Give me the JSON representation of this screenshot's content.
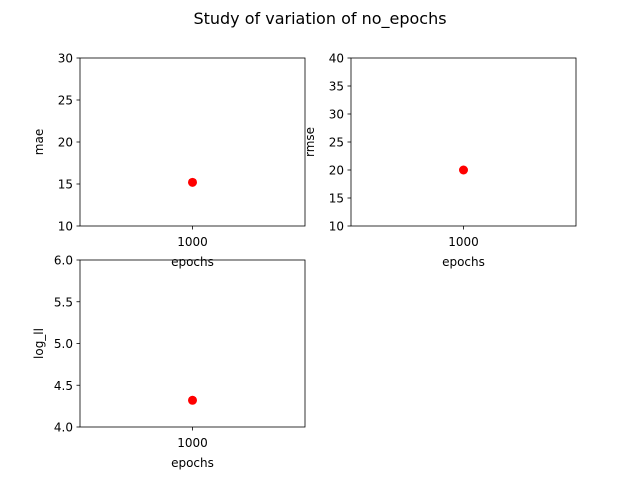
{
  "figure": {
    "title": "Study of variation of no_epochs"
  },
  "chart_data": [
    {
      "type": "scatter",
      "title": "",
      "xlabel": "epochs",
      "ylabel": "mae",
      "x_categories": [
        "1000"
      ],
      "points": [
        {
          "x": "1000",
          "y": 15.2
        }
      ],
      "ylim": [
        10,
        30
      ],
      "yticks": [
        "10",
        "15",
        "20",
        "25",
        "30"
      ],
      "color": "#ff0000",
      "grid": false
    },
    {
      "type": "scatter",
      "title": "",
      "xlabel": "epochs",
      "ylabel": "rmse",
      "x_categories": [
        "1000"
      ],
      "points": [
        {
          "x": "1000",
          "y": 20.0
        }
      ],
      "ylim": [
        10,
        40
      ],
      "yticks": [
        "10",
        "15",
        "20",
        "25",
        "30",
        "35",
        "40"
      ],
      "color": "#ff0000",
      "grid": false
    },
    {
      "type": "scatter",
      "title": "",
      "xlabel": "epochs",
      "ylabel": "log_ll",
      "x_categories": [
        "1000"
      ],
      "points": [
        {
          "x": "1000",
          "y": 4.32
        }
      ],
      "ylim": [
        4.0,
        6.0
      ],
      "yticks": [
        "4.0",
        "4.5",
        "5.0",
        "5.5",
        "6.0"
      ],
      "color": "#ff0000",
      "grid": false
    }
  ]
}
